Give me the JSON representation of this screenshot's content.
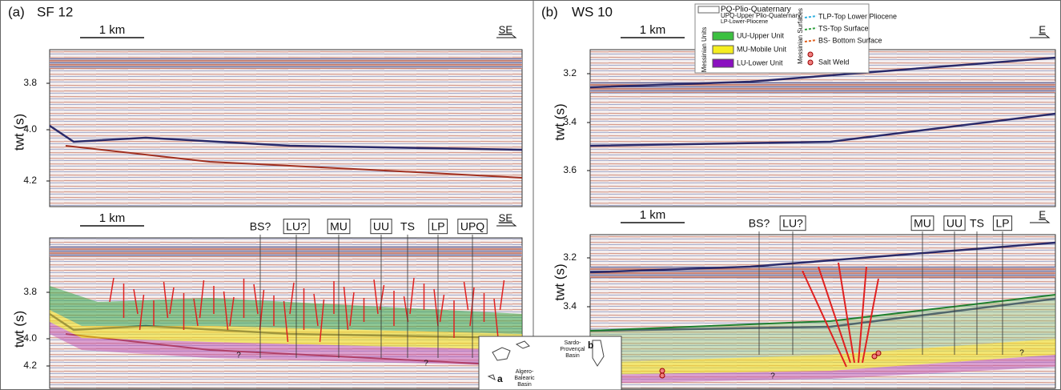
{
  "panels": [
    {
      "label": "(a)",
      "name": "SF 12",
      "top": {
        "scale": "1 km",
        "direction": "SE",
        "yticks": [
          "3.8",
          "4.0",
          "4.2"
        ],
        "ylabel": "twt (s)"
      },
      "bottom": {
        "scale": "1 km",
        "direction": "SE",
        "yticks": [
          "3.8",
          "4.0",
          "4.2"
        ],
        "ylabel": "twt (s)",
        "annotations": [
          "BS?",
          "LU?",
          "MU",
          "UU",
          "TS",
          "LP",
          "UPQ"
        ],
        "queries": [
          "?",
          "?"
        ]
      }
    },
    {
      "label": "(b)",
      "name": "WS 10",
      "top": {
        "scale": "1 km",
        "direction": "E",
        "yticks": [
          "3.2",
          "3.4",
          "3.6"
        ],
        "ylabel": "twt (s)"
      },
      "bottom": {
        "scale": "1 km",
        "direction": "E",
        "yticks": [
          "3.2",
          "3.4"
        ],
        "ylabel": "twt (s)",
        "annotations": [
          "BS?",
          "LU?",
          "MU",
          "UU",
          "TS",
          "LP"
        ],
        "queries": [
          "?",
          "?"
        ]
      }
    }
  ],
  "legend": {
    "plio": [
      "PQ-Plio-Quaternary",
      "UPQ-Upper Plio-Quaternary",
      "LP-Lower-Pliocene"
    ],
    "units_title": "Messinian Units",
    "units": [
      "UU-Upper Unit",
      "MU-Mobile Unit",
      "LU-Lower Unit"
    ],
    "surfaces_title": "Messinian Surfaces",
    "surfaces": [
      "TLP-Top Lower Pliocene",
      "TS-Top Surface",
      "BS- Bottom Surface"
    ],
    "weld": "Salt Weld"
  },
  "inset": {
    "north_basin": [
      "Sardo-",
      "Provençal",
      "Basin"
    ],
    "south_basin": [
      "Algero-",
      "Balearic",
      "Basin"
    ],
    "site_a": "a",
    "site_b": "b"
  }
}
